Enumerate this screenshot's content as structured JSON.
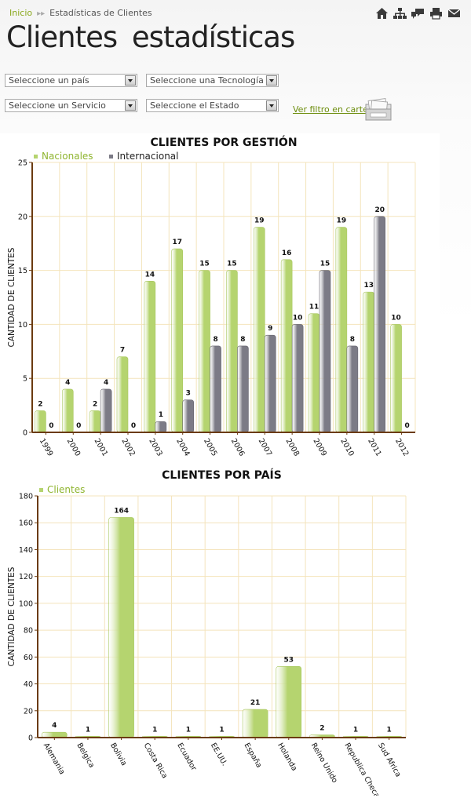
{
  "breadcrumb": {
    "home": "Inicio",
    "current": "Estadísticas de Clientes"
  },
  "toolbar_icons": [
    "home-icon",
    "sitemap-icon",
    "comments-icon",
    "print-icon",
    "mail-icon"
  ],
  "page_title": "Clientes  estadísticas",
  "filters": {
    "pais": "Seleccione un país",
    "tecnologia": "Seleccione una Tecnología",
    "servicio": "Seleccione un Servicio",
    "estado": "Seleccione el Estado",
    "filter_link": "Ver filtro en cartera"
  },
  "colors": {
    "nacionales": "#b5d46f",
    "internacional": "#7c7b86",
    "axis": "#6b3b10",
    "grid": "#f3e2b5",
    "link": "#6d8e0e"
  },
  "chart_data": [
    {
      "type": "bar",
      "title": "CLIENTES POR GESTIÓN",
      "xlabel": "",
      "ylabel": "CANTIDAD DE CLIENTES",
      "ylim": [
        0,
        25
      ],
      "yticks": [
        0,
        5,
        10,
        15,
        20,
        25
      ],
      "legend_position": "top-left",
      "grid": true,
      "categories": [
        "1999",
        "2000",
        "2001",
        "2002",
        "2003",
        "2004",
        "2005",
        "2006",
        "2007",
        "2008",
        "2009",
        "2010",
        "2011",
        "2012"
      ],
      "series": [
        {
          "name": "Nacionales",
          "color": "#b5d46f",
          "values": [
            2,
            4,
            2,
            7,
            14,
            17,
            15,
            15,
            19,
            16,
            11,
            19,
            13,
            10
          ]
        },
        {
          "name": "Internacional",
          "color": "#7c7b86",
          "values": [
            0,
            0,
            4,
            0,
            1,
            3,
            8,
            8,
            9,
            10,
            15,
            8,
            20,
            0
          ]
        }
      ]
    },
    {
      "type": "bar",
      "title": "CLIENTES POR PAÍS",
      "xlabel": "",
      "ylabel": "CANTIDAD DE CLIENTES",
      "ylim": [
        0,
        180
      ],
      "yticks": [
        0,
        20,
        40,
        60,
        80,
        100,
        120,
        140,
        160,
        180
      ],
      "legend_position": "top-left",
      "grid": true,
      "categories": [
        "Alemania",
        "Belgica",
        "Bolivia",
        "Costa Rica",
        "Ecuador",
        "EE.UU.",
        "España",
        "Holanda",
        "Reino Unido",
        "Republica Checa",
        "Sud Africa"
      ],
      "series": [
        {
          "name": "Clientes",
          "color": "#b5d46f",
          "values": [
            4,
            1,
            164,
            1,
            1,
            1,
            21,
            53,
            2,
            1,
            1
          ]
        }
      ]
    }
  ]
}
